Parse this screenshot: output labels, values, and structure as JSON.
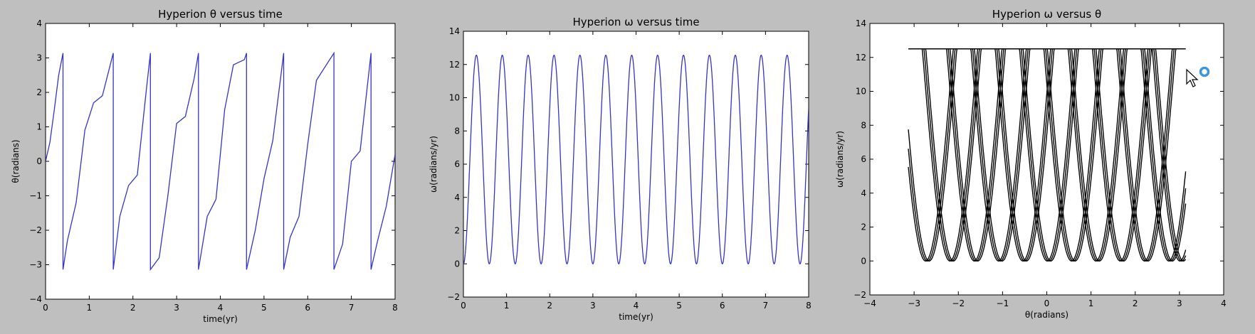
{
  "colors": {
    "figure_bg": "#bfbfbf",
    "axes_bg": "#ffffff",
    "line_blue": "#3434c8",
    "line_black": "#000000",
    "cursor_ring": "#3a96dd"
  },
  "cursor": {
    "icon": "mouse-pointer-icon",
    "busy_icon": "busy-ring-icon"
  },
  "chart_data": [
    {
      "type": "line",
      "title": "Hyperion θ versus time",
      "xlabel": "time(yr)",
      "ylabel": "θ(radians)",
      "xlim": [
        0,
        8
      ],
      "ylim": [
        -4,
        4
      ],
      "xticks": [
        "0",
        "1",
        "2",
        "3",
        "4",
        "5",
        "6",
        "7",
        "8"
      ],
      "yticks": [
        "−4",
        "−3",
        "−2",
        "−1",
        "0",
        "1",
        "2",
        "3",
        "4"
      ],
      "grid": false,
      "series": [
        {
          "color": "#3434c8",
          "x": [
            0,
            0.1,
            0.2,
            0.3,
            0.4,
            0.4,
            0.5,
            0.7,
            0.9,
            1.1,
            1.3,
            1.55,
            1.55,
            1.7,
            1.9,
            2.1,
            2.3,
            2.4,
            2.4,
            2.6,
            2.8,
            3.0,
            3.2,
            3.4,
            3.5,
            3.5,
            3.7,
            3.9,
            4.1,
            4.3,
            4.55,
            4.6,
            4.6,
            4.8,
            5.0,
            5.2,
            5.45,
            5.45,
            5.6,
            5.8,
            6.0,
            6.2,
            6.6,
            6.6,
            6.8,
            7.0,
            7.2,
            7.45,
            7.45,
            7.6,
            7.8,
            8.0
          ],
          "y": [
            0.0,
            0.55,
            1.5,
            2.5,
            3.14,
            -3.14,
            -2.3,
            -1.2,
            0.9,
            1.7,
            1.9,
            3.14,
            -3.14,
            -1.6,
            -0.7,
            -0.4,
            2.0,
            3.14,
            -3.14,
            -2.8,
            -1.0,
            1.1,
            1.3,
            2.4,
            3.14,
            -3.14,
            -1.6,
            -1.1,
            1.5,
            2.8,
            2.95,
            3.14,
            -3.14,
            -2.0,
            -0.5,
            0.6,
            3.14,
            -3.14,
            -2.2,
            -1.6,
            0.5,
            2.35,
            3.14,
            -3.14,
            -2.4,
            0.0,
            0.3,
            3.14,
            -3.14,
            -2.3,
            -1.3,
            0.2
          ]
        }
      ]
    },
    {
      "type": "line",
      "title": "Hyperion ω versus time",
      "xlabel": "time(yr)",
      "ylabel": "ω(radians/yr)",
      "xlim": [
        0,
        8
      ],
      "ylim": [
        -2,
        14
      ],
      "xticks": [
        "0",
        "1",
        "2",
        "3",
        "4",
        "5",
        "6",
        "7",
        "8"
      ],
      "yticks": [
        "−2",
        "0",
        "2",
        "4",
        "6",
        "8",
        "10",
        "12",
        "14"
      ],
      "grid": false,
      "series": [
        {
          "color": "#3434c8",
          "function": "omega = 6.28 * (1 - cos(2*pi*t/period))",
          "period": 0.6,
          "amplitude_max": 12.56,
          "amplitude_min": 0
        }
      ]
    },
    {
      "type": "scatter",
      "title": "Hyperion ω versus θ",
      "xlabel": "θ(radians)",
      "ylabel": "ω(radians/yr)",
      "xlim": [
        -4,
        4
      ],
      "ylim": [
        -2,
        14
      ],
      "xticks": [
        "−4",
        "−3",
        "−2",
        "−1",
        "0",
        "1",
        "2",
        "3",
        "4"
      ],
      "yticks": [
        "−2",
        "0",
        "2",
        "4",
        "6",
        "8",
        "10",
        "12",
        "14"
      ],
      "grid": false,
      "series": [
        {
          "color": "#000000",
          "description_of_curves": "arches",
          "arch_base_positions": [
            -2.7,
            -2.15,
            -1.6,
            -1.05,
            -0.5,
            0.05,
            0.6,
            1.15,
            1.7,
            2.25,
            2.8,
            3.05
          ],
          "arch_peak_value": 12.5,
          "theta_range": [
            -3.14,
            3.14
          ]
        }
      ]
    }
  ]
}
